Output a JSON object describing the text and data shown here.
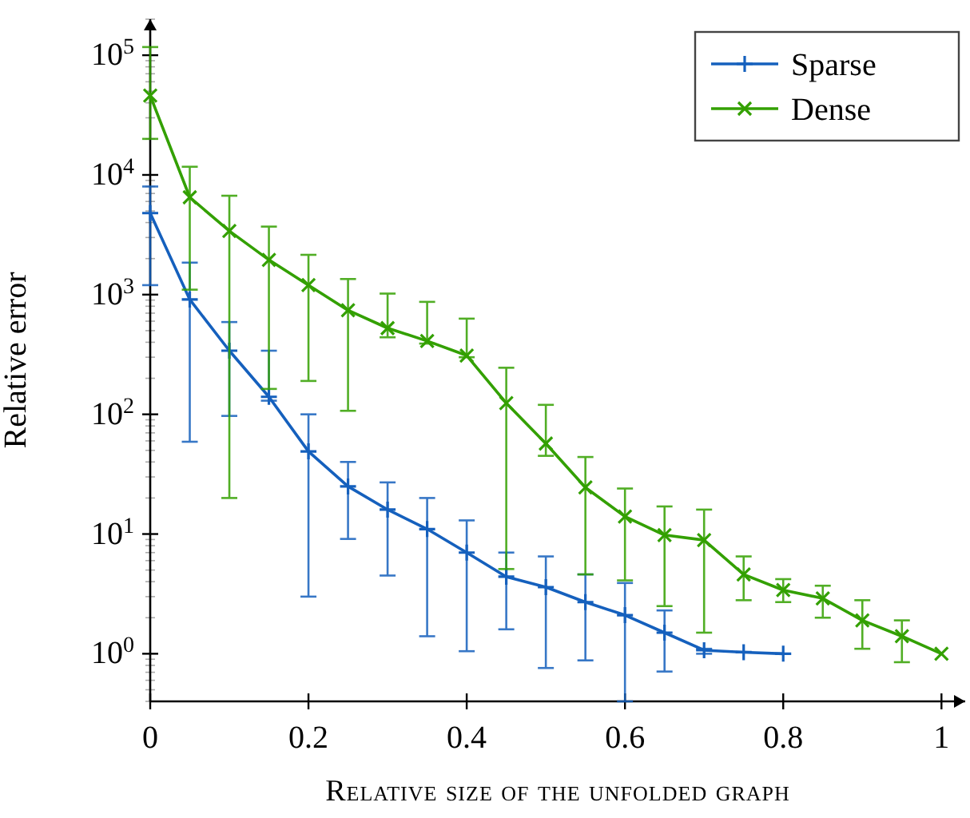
{
  "chart_data": {
    "type": "line",
    "xlabel": "Relative size of the unfolded graph",
    "ylabel": "Relative error",
    "log": "y",
    "legend": "top right",
    "line_style": "solid",
    "xlim": [
      0,
      1.03
    ],
    "xticks": [
      0,
      0.2,
      0.4,
      0.6,
      0.8,
      1
    ],
    "ylim": [
      0.4,
      200000
    ],
    "yticks": [
      {
        "value": 1,
        "label": "10$^{0}$"
      },
      {
        "value": 10,
        "label": "10$^{1}$"
      },
      {
        "value": 100,
        "label": "10$^{2}$"
      },
      {
        "value": 1000,
        "label": "10$^{3}$"
      },
      {
        "value": 10000,
        "label": "10$^{4}$"
      },
      {
        "value": 100000,
        "label": "10$^{5}$"
      }
    ],
    "series": [
      {
        "name": "Sparse",
        "color": "#1560bd",
        "marker": "cross",
        "x": [
          0,
          0.05,
          0.1,
          0.15,
          0.2,
          0.25,
          0.3,
          0.35,
          0.4,
          0.45,
          0.5,
          0.55,
          0.6,
          0.65,
          0.7,
          0.75,
          0.8
        ],
        "values": [
          4800,
          910,
          340,
          140,
          49,
          25,
          16,
          11,
          7,
          4.4,
          3.6,
          2.7,
          2.1,
          1.5,
          1.07,
          1.03,
          1.0
        ],
        "errors": [
          [
            1200,
            8000
          ],
          [
            59,
            1850
          ],
          [
            97,
            590
          ],
          [
            130,
            340
          ],
          [
            3,
            100
          ],
          [
            9.1,
            40
          ],
          [
            4.5,
            27
          ],
          [
            1.4,
            20
          ],
          [
            1.05,
            13
          ],
          [
            1.6,
            7
          ],
          [
            0.76,
            6.5
          ],
          [
            0.88,
            4.6
          ],
          [
            0.4,
            3.9
          ],
          [
            0.71,
            2.3
          ],
          [
            1.0,
            1.1
          ],
          null,
          null
        ]
      },
      {
        "name": "Dense",
        "color": "#33a000",
        "marker": "x",
        "x": [
          0,
          0.05,
          0.1,
          0.15,
          0.2,
          0.25,
          0.3,
          0.35,
          0.4,
          0.45,
          0.5,
          0.55,
          0.6,
          0.65,
          0.7,
          0.75,
          0.8,
          0.85,
          0.9,
          0.95,
          1
        ],
        "values": [
          46000,
          6500,
          3400,
          1950,
          1200,
          740,
          525,
          410,
          310,
          124,
          57,
          24.5,
          14,
          9.8,
          8.9,
          4.6,
          3.4,
          2.9,
          1.9,
          1.4,
          1.0
        ],
        "errors": [
          [
            20000,
            117000
          ],
          [
            1100,
            11700
          ],
          [
            20,
            6700
          ],
          [
            163,
            3700
          ],
          [
            190,
            2150
          ],
          [
            107,
            1350
          ],
          [
            440,
            1020
          ],
          [
            390,
            870
          ],
          [
            300,
            630
          ],
          [
            5.1,
            245
          ],
          [
            45,
            120
          ],
          [
            4.6,
            44
          ],
          [
            4.1,
            24
          ],
          [
            2.5,
            17
          ],
          [
            1.5,
            16
          ],
          [
            2.8,
            6.5
          ],
          [
            2.7,
            4.2
          ],
          [
            2.0,
            3.7
          ],
          [
            1.1,
            2.8
          ],
          [
            0.85,
            1.9
          ],
          null
        ]
      }
    ]
  }
}
